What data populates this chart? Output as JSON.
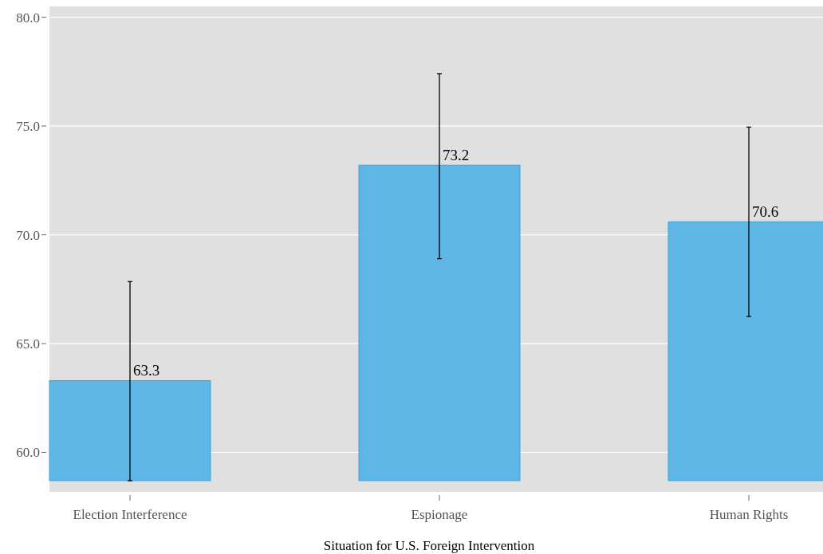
{
  "chart_data": {
    "type": "bar",
    "xlabel": "Situation for U.S. Foreign Intervention",
    "categories": [
      "Election Interference",
      "Espionage",
      "Human Rights"
    ],
    "values": [
      63.3,
      73.2,
      70.6
    ],
    "color": "#5db6e4",
    "errors": [
      [
        58.7,
        67.85
      ],
      [
        68.9,
        77.4
      ],
      [
        66.25,
        74.95
      ]
    ],
    "data_labels": true,
    "ylim": [
      58.7,
      80.5
    ],
    "yticks": [
      {
        "value": 60,
        "label": "60.0"
      },
      {
        "value": 65,
        "label": "65.0"
      },
      {
        "value": 70,
        "label": "70.0"
      },
      {
        "value": 75,
        "label": "75.0"
      },
      {
        "value": 80,
        "label": "80.0"
      }
    ],
    "grid": "y"
  }
}
